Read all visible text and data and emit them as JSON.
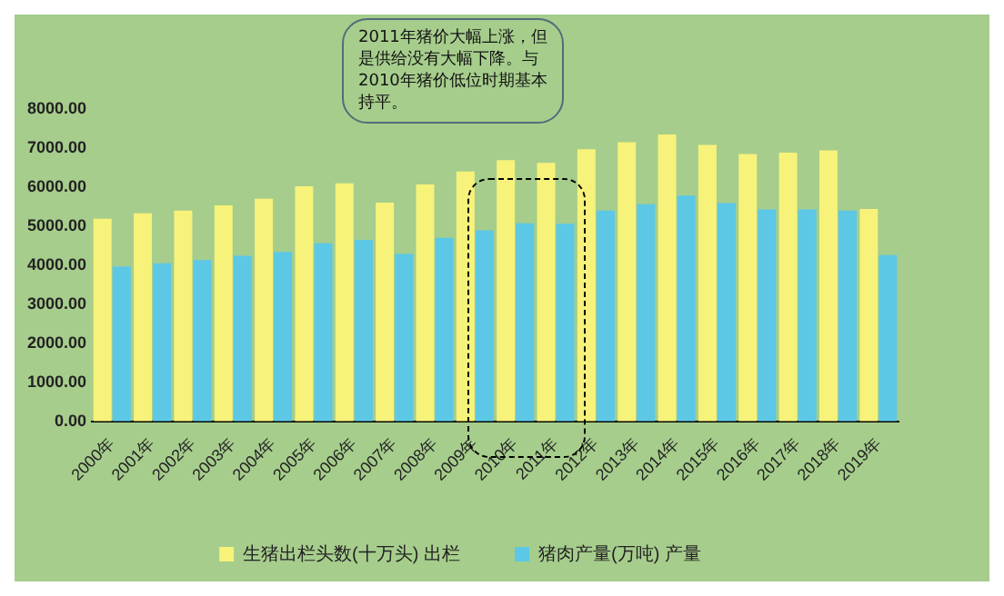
{
  "chart_data": {
    "type": "bar",
    "categories": [
      "2000年",
      "2001年",
      "2002年",
      "2003年",
      "2004年",
      "2005年",
      "2006年",
      "2007年",
      "2008年",
      "2009年",
      "2010年",
      "2011年",
      "2012年",
      "2013年",
      "2014年",
      "2015年",
      "2016年",
      "2017年",
      "2018年",
      "2019年"
    ],
    "series": [
      {
        "name": "生猪出栏头数(十万头) 出栏",
        "color": "#f6f27a",
        "values": [
          5190,
          5330,
          5400,
          5530,
          5700,
          6020,
          6100,
          5600,
          6070,
          6400,
          6690,
          6620,
          6970,
          7150,
          7350,
          7080,
          6850,
          6880,
          6940,
          5440
        ]
      },
      {
        "name": "猪肉产量(万吨) 产量",
        "color": "#5cc8e6",
        "values": [
          3970,
          4050,
          4130,
          4240,
          4340,
          4560,
          4650,
          4290,
          4700,
          4890,
          5070,
          5060,
          5400,
          5560,
          5780,
          5590,
          5430,
          5430,
          5400,
          4260
        ]
      }
    ],
    "ylim": [
      0,
      8000
    ],
    "yticks": [
      {
        "value": 0,
        "label": "0.00"
      },
      {
        "value": 1000,
        "label": "1000.00"
      },
      {
        "value": 2000,
        "label": "2000.00"
      },
      {
        "value": 3000,
        "label": "3000.00"
      },
      {
        "value": 4000,
        "label": "4000.00"
      },
      {
        "value": 5000,
        "label": "5000.00"
      },
      {
        "value": 6000,
        "label": "6000.00"
      },
      {
        "value": 7000,
        "label": "7000.00"
      },
      {
        "value": 8000,
        "label": "8000.00"
      }
    ],
    "grid": false,
    "legend": "bottom",
    "annotations": [
      "2011年猪价大幅上涨，但是供给没有大幅下降。与2010年猪价低位时期基本持平。"
    ]
  }
}
